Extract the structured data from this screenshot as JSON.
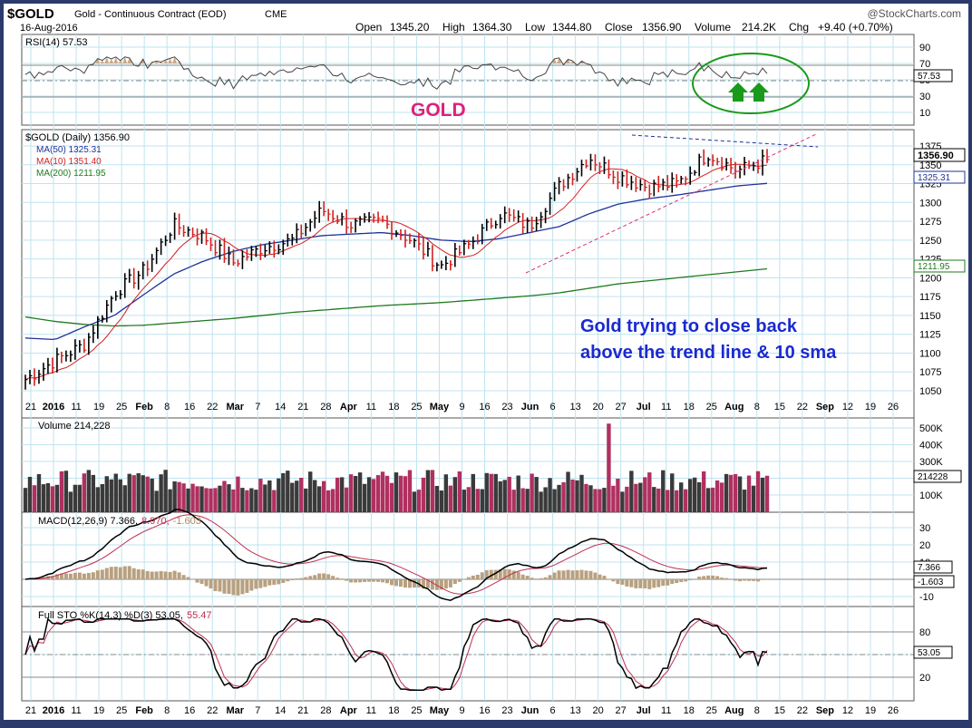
{
  "header": {
    "symbol": "$GOLD",
    "description": "Gold - Continuous Contract (EOD)",
    "exchange": "CME",
    "date": "16-Aug-2016",
    "watermark": "@StockCharts.com",
    "ohlc": {
      "open_label": "Open",
      "open": "1345.20",
      "high_label": "High",
      "high": "1364.30",
      "low_label": "Low",
      "low": "1344.80",
      "close_label": "Close",
      "close": "1356.90",
      "volume_label": "Volume",
      "volume": "214.2K",
      "chg_label": "Chg",
      "chg": "+9.40 (+0.70%)"
    }
  },
  "annotations": {
    "gold_label": "GOLD",
    "note_line1": "Gold trying to close back",
    "note_line2": "above the trend line & 10 sma"
  },
  "colors": {
    "frame": "#2b3a6b",
    "grid": "#bfe3ef",
    "price": "#000000",
    "ma50": "#1f3399",
    "ma10": "#d42020",
    "ma200": "#1f7a1f",
    "up_volume": "#3a3a3a",
    "down_volume": "#b03060",
    "annotation_pink": "#e0207a",
    "annotation_blue": "#1a2ad0",
    "arrows": "#1a9a1a",
    "ellipse": "#1a9a1a"
  },
  "panels": {
    "rsi": {
      "legend": "RSI(14) 57.53",
      "value": "57.53",
      "ticks": [
        "90",
        "70",
        "50",
        "30",
        "10"
      ]
    },
    "price": {
      "legend_symbol": "$GOLD (Daily) 1356.90",
      "legend_ma50": "MA(50) 1325.31",
      "legend_ma10": "MA(10) 1351.40",
      "legend_ma200": "MA(200) 1211.95",
      "value_tag": "1356.90",
      "ma50_tag": "1325.31",
      "ma200_tag": "1211.95",
      "ticks": [
        "1375",
        "1350",
        "1325",
        "1300",
        "1275",
        "1250",
        "1225",
        "1200",
        "1175",
        "1150",
        "1125",
        "1100",
        "1075",
        "1050"
      ]
    },
    "volume": {
      "legend": "Volume 214,228",
      "value_tag": "214228",
      "ticks": [
        "500K",
        "400K",
        "300K",
        "200K",
        "100K"
      ]
    },
    "macd": {
      "legend_prefix": "MACD(12,26,9) 7.366,",
      "legend_signal": "8.970,",
      "legend_hist": "-1.603",
      "macd_tag": "7.366",
      "hist_tag": "-1.603",
      "ticks": [
        "30",
        "20",
        "10",
        "0",
        "-10"
      ]
    },
    "stoch": {
      "legend_prefix": "Full STO %K(14,3) %D(3) 53.05,",
      "legend_d": "55.47",
      "value_tag": "53.05",
      "ticks": [
        "80",
        "50",
        "20"
      ]
    }
  },
  "x_axis": {
    "labels": [
      "21",
      "2016",
      "11",
      "19",
      "25",
      "Feb",
      "8",
      "16",
      "22",
      "Mar",
      "7",
      "14",
      "21",
      "28",
      "Apr",
      "11",
      "18",
      "25",
      "May",
      "9",
      "16",
      "23",
      "Jun",
      "6",
      "13",
      "20",
      "27",
      "Jul",
      "11",
      "18",
      "25",
      "Aug",
      "8",
      "15",
      "22",
      "Sep",
      "12",
      "19",
      "26"
    ]
  },
  "chart_data": {
    "type": "candlestick",
    "symbol": "$GOLD",
    "period": "Daily",
    "price_range": [
      1035,
      1385
    ],
    "close_series_approx": {
      "dates": [
        "2015-12-21",
        "2016-01-11",
        "2016-01-25",
        "2016-02-08",
        "2016-02-16",
        "2016-03-07",
        "2016-03-14",
        "2016-03-28",
        "2016-04-11",
        "2016-04-25",
        "2016-05-02",
        "2016-05-09",
        "2016-05-16",
        "2016-05-23",
        "2016-05-30",
        "2016-06-06",
        "2016-06-13",
        "2016-06-20",
        "2016-06-24",
        "2016-07-05",
        "2016-07-11",
        "2016-07-18",
        "2016-07-25",
        "2016-08-01",
        "2016-08-08",
        "2016-08-16"
      ],
      "close": [
        1065,
        1090,
        1112,
        1180,
        1210,
        1270,
        1255,
        1220,
        1240,
        1250,
        1290,
        1270,
        1275,
        1250,
        1215,
        1245,
        1285,
        1268,
        1322,
        1360,
        1335,
        1320,
        1325,
        1365,
        1342,
        1356.9
      ]
    },
    "ma50": [
      1120,
      1118,
      1135,
      1150,
      1178,
      1205,
      1222,
      1235,
      1244,
      1250,
      1256,
      1258,
      1260,
      1256,
      1250,
      1248,
      1252,
      1260,
      1268,
      1285,
      1298,
      1305,
      1310,
      1316,
      1322,
      1325.31
    ],
    "ma200": [
      1148,
      1142,
      1138,
      1136,
      1137,
      1140,
      1143,
      1146,
      1150,
      1154,
      1157,
      1160,
      1163,
      1165,
      1167,
      1170,
      1173,
      1176,
      1180,
      1186,
      1192,
      1196,
      1200,
      1204,
      1208,
      1211.95
    ],
    "rsi": {
      "latest": 57.53,
      "levels": [
        70,
        30
      ]
    },
    "volume_latest": 214228,
    "macd": {
      "macd": 7.366,
      "signal": 8.97,
      "histogram": -1.603
    },
    "stochastic": {
      "k": 53.05,
      "d": 55.47,
      "levels": [
        80,
        20
      ]
    }
  }
}
